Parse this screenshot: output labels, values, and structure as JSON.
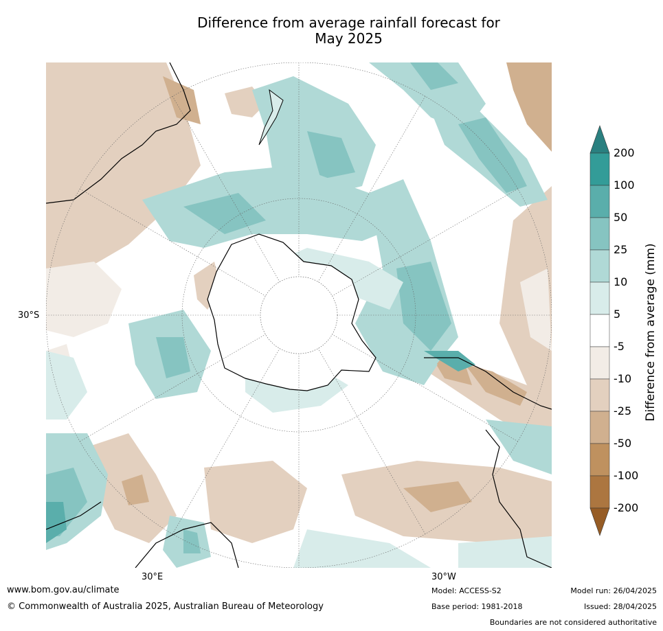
{
  "title_line1": "Difference from average rainfall forecast for",
  "title_line2": "May 2025",
  "map": {
    "projection": "south-polar-stereographic",
    "lat_label": "30°S",
    "lon_label_left": "30°E",
    "lon_label_right": "30°W"
  },
  "colorbar": {
    "title": "Difference from average (mm)",
    "ticks": [
      "200",
      "100",
      "50",
      "25",
      "10",
      "5",
      "-5",
      "-10",
      "-25",
      "-50",
      "-100",
      "-200"
    ],
    "colors": [
      "#2a8080",
      "#339c98",
      "#5aaeab",
      "#86c4c1",
      "#b0d9d6",
      "#d8ecea",
      "#ffffff",
      "#f2ece6",
      "#e3d0bf",
      "#d0b08f",
      "#bf915f",
      "#ac7640",
      "#965c25"
    ]
  },
  "footer": {
    "website": "www.bom.gov.au/climate",
    "copyright": "© Commonwealth of Australia 2025, Australian Bureau of Meteorology",
    "model": "Model: ACCESS-S2",
    "base_period": "Base period: 1981-2018",
    "model_run": "Model run: 26/04/2025",
    "issued": "Issued: 28/04/2025",
    "disclaimer": "Boundaries are not considered authoritative"
  }
}
